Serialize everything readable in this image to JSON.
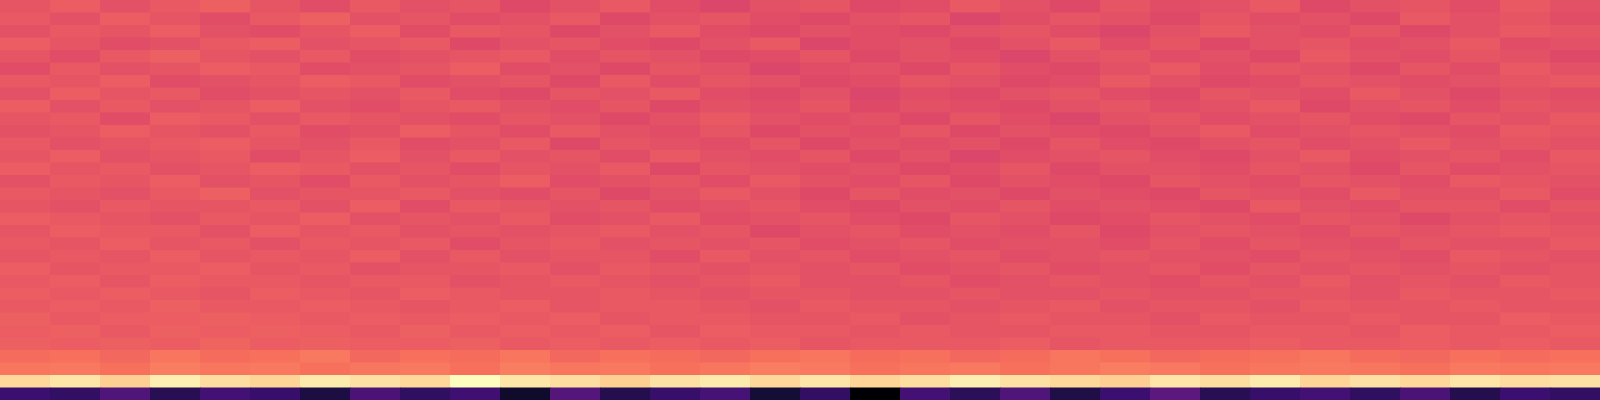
{
  "chart_data": {
    "type": "heatmap",
    "tick_labels": false,
    "cells": [
      [
        63,
        65,
        62,
        64,
        66,
        63,
        61,
        64,
        62,
        63,
        60,
        62,
        64,
        61,
        59,
        62,
        63,
        60,
        61,
        64,
        62,
        60,
        63,
        61,
        62,
        64,
        60,
        62,
        63,
        61,
        64,
        62
      ],
      [
        64,
        62,
        65,
        63,
        61,
        64,
        66,
        62,
        63,
        61,
        62,
        64,
        60,
        62,
        63,
        61,
        60,
        62,
        63,
        59,
        61,
        63,
        62,
        60,
        63,
        61,
        62,
        60,
        64,
        62,
        63,
        61
      ],
      [
        62,
        64,
        63,
        65,
        62,
        61,
        63,
        65,
        61,
        64,
        63,
        60,
        62,
        64,
        61,
        60,
        62,
        61,
        60,
        62,
        63,
        61,
        59,
        62,
        64,
        62,
        61,
        63,
        60,
        62,
        64,
        63
      ],
      [
        65,
        63,
        61,
        62,
        64,
        65,
        62,
        63,
        64,
        60,
        62,
        63,
        61,
        60,
        62,
        64,
        59,
        61,
        62,
        60,
        62,
        64,
        61,
        63,
        60,
        62,
        63,
        61,
        62,
        64,
        61,
        62
      ],
      [
        63,
        61,
        64,
        66,
        63,
        62,
        64,
        61,
        62,
        63,
        64,
        61,
        63,
        62,
        60,
        61,
        63,
        60,
        62,
        61,
        59,
        62,
        63,
        61,
        62,
        60,
        64,
        62,
        61,
        63,
        62,
        60
      ],
      [
        61,
        64,
        62,
        63,
        65,
        64,
        61,
        62,
        63,
        65,
        61,
        62,
        60,
        63,
        62,
        59,
        61,
        62,
        60,
        63,
        61,
        60,
        62,
        64,
        61,
        63,
        62,
        60,
        63,
        61,
        64,
        62
      ],
      [
        64,
        63,
        65,
        61,
        62,
        63,
        65,
        64,
        61,
        62,
        63,
        60,
        64,
        61,
        63,
        62,
        60,
        61,
        63,
        62,
        60,
        61,
        64,
        62,
        60,
        61,
        63,
        62,
        61,
        62,
        63,
        64
      ],
      [
        62,
        65,
        63,
        64,
        61,
        62,
        63,
        62,
        64,
        61,
        60,
        63,
        62,
        64,
        61,
        60,
        62,
        59,
        61,
        60,
        62,
        63,
        61,
        60,
        63,
        62,
        61,
        64,
        62,
        60,
        62,
        61
      ],
      [
        65,
        62,
        64,
        62,
        63,
        65,
        62,
        61,
        63,
        64,
        62,
        61,
        63,
        60,
        62,
        61,
        63,
        60,
        62,
        61,
        60,
        62,
        63,
        61,
        62,
        64,
        60,
        62,
        63,
        61,
        63,
        62
      ],
      [
        63,
        64,
        61,
        65,
        64,
        62,
        64,
        63,
        62,
        61,
        63,
        62,
        60,
        62,
        64,
        62,
        61,
        62,
        60,
        63,
        61,
        59,
        62,
        63,
        61,
        62,
        63,
        61,
        60,
        63,
        62,
        64
      ],
      [
        62,
        63,
        65,
        63,
        62,
        64,
        61,
        62,
        65,
        63,
        61,
        64,
        62,
        61,
        63,
        60,
        62,
        61,
        63,
        60,
        62,
        61,
        60,
        62,
        64,
        61,
        62,
        63,
        62,
        61,
        64,
        63
      ],
      [
        64,
        62,
        63,
        64,
        65,
        63,
        62,
        64,
        61,
        62,
        64,
        60,
        63,
        62,
        61,
        63,
        60,
        62,
        61,
        62,
        60,
        63,
        61,
        60,
        62,
        63,
        61,
        62,
        64,
        62,
        63,
        62
      ],
      [
        63,
        65,
        62,
        63,
        64,
        61,
        63,
        65,
        62,
        64,
        62,
        63,
        61,
        64,
        62,
        61,
        63,
        60,
        62,
        59,
        61,
        62,
        63,
        61,
        60,
        62,
        64,
        61,
        62,
        63,
        61,
        64
      ],
      [
        65,
        63,
        64,
        62,
        63,
        65,
        64,
        62,
        63,
        61,
        63,
        62,
        64,
        60,
        63,
        62,
        61,
        62,
        60,
        61,
        63,
        60,
        62,
        62,
        61,
        63,
        62,
        60,
        63,
        61,
        62,
        63
      ],
      [
        62,
        64,
        63,
        65,
        62,
        63,
        61,
        64,
        62,
        63,
        65,
        61,
        62,
        63,
        61,
        64,
        62,
        61,
        63,
        60,
        62,
        61,
        60,
        63,
        62,
        61,
        63,
        62,
        61,
        64,
        63,
        62
      ],
      [
        64,
        63,
        62,
        64,
        66,
        62,
        63,
        63,
        64,
        62,
        61,
        63,
        60,
        62,
        64,
        62,
        60,
        63,
        61,
        62,
        60,
        62,
        61,
        60,
        63,
        62,
        61,
        64,
        62,
        62,
        64,
        61
      ],
      [
        63,
        62,
        64,
        63,
        63,
        64,
        62,
        65,
        61,
        64,
        63,
        62,
        63,
        61,
        62,
        63,
        61,
        60,
        62,
        61,
        63,
        61,
        62,
        61,
        60,
        64,
        62,
        61,
        63,
        63,
        61,
        63
      ],
      [
        65,
        64,
        63,
        62,
        64,
        63,
        65,
        62,
        63,
        62,
        64,
        61,
        62,
        64,
        61,
        62,
        63,
        61,
        60,
        63,
        62,
        60,
        61,
        63,
        62,
        61,
        63,
        62,
        60,
        62,
        63,
        62
      ],
      [
        63,
        65,
        64,
        64,
        62,
        65,
        63,
        64,
        62,
        63,
        62,
        63,
        64,
        62,
        63,
        60,
        62,
        63,
        61,
        62,
        61,
        63,
        60,
        62,
        63,
        62,
        61,
        63,
        62,
        63,
        64,
        63
      ],
      [
        64,
        63,
        65,
        63,
        64,
        62,
        64,
        63,
        64,
        61,
        63,
        64,
        62,
        63,
        62,
        63,
        61,
        62,
        63,
        61,
        62,
        62,
        61,
        63,
        61,
        63,
        62,
        61,
        63,
        62,
        62,
        64
      ],
      [
        63,
        64,
        63,
        65,
        63,
        64,
        63,
        65,
        62,
        64,
        62,
        63,
        63,
        61,
        64,
        62,
        63,
        61,
        62,
        63,
        61,
        62,
        63,
        62,
        62,
        61,
        63,
        62,
        61,
        64,
        63,
        62
      ],
      [
        65,
        63,
        64,
        64,
        65,
        63,
        64,
        62,
        63,
        63,
        64,
        62,
        64,
        63,
        62,
        63,
        62,
        63,
        61,
        62,
        63,
        61,
        62,
        63,
        61,
        63,
        62,
        63,
        62,
        63,
        62,
        63
      ],
      [
        64,
        65,
        63,
        65,
        64,
        64,
        63,
        64,
        64,
        62,
        63,
        64,
        63,
        62,
        63,
        64,
        62,
        62,
        63,
        61,
        62,
        63,
        62,
        61,
        63,
        62,
        64,
        62,
        63,
        62,
        64,
        63
      ],
      [
        65,
        64,
        65,
        64,
        63,
        65,
        64,
        63,
        65,
        64,
        63,
        63,
        64,
        63,
        62,
        63,
        63,
        62,
        62,
        63,
        62,
        62,
        63,
        62,
        62,
        63,
        63,
        62,
        64,
        63,
        63,
        64
      ],
      [
        64,
        65,
        64,
        66,
        64,
        64,
        65,
        64,
        63,
        64,
        65,
        63,
        64,
        64,
        63,
        62,
        64,
        63,
        63,
        62,
        63,
        64,
        62,
        63,
        63,
        62,
        64,
        63,
        63,
        64,
        63,
        63
      ],
      [
        66,
        64,
        65,
        65,
        66,
        65,
        64,
        65,
        64,
        65,
        64,
        65,
        63,
        64,
        64,
        63,
        63,
        64,
        62,
        63,
        64,
        63,
        63,
        62,
        64,
        63,
        63,
        64,
        63,
        63,
        65,
        64
      ],
      [
        65,
        66,
        64,
        66,
        65,
        66,
        65,
        64,
        66,
        64,
        65,
        64,
        65,
        63,
        65,
        64,
        64,
        63,
        64,
        63,
        63,
        64,
        64,
        63,
        63,
        64,
        64,
        63,
        65,
        64,
        64,
        65
      ],
      [
        66,
        65,
        66,
        65,
        67,
        65,
        66,
        65,
        65,
        66,
        64,
        65,
        64,
        65,
        64,
        65,
        63,
        64,
        64,
        64,
        65,
        63,
        64,
        64,
        64,
        65,
        64,
        64,
        65,
        64,
        65,
        64
      ],
      [
        69,
        70,
        68,
        71,
        69,
        70,
        72,
        68,
        70,
        69,
        71,
        68,
        70,
        69,
        68,
        70,
        71,
        69,
        70,
        68,
        69,
        71,
        70,
        68,
        69,
        70,
        71,
        69,
        68,
        70,
        69,
        70
      ],
      [
        71,
        72,
        70,
        73,
        71,
        72,
        70,
        71,
        72,
        70,
        73,
        71,
        72,
        70,
        71,
        73,
        72,
        70,
        71,
        72,
        70,
        71,
        73,
        72,
        70,
        71,
        72,
        71,
        70,
        72,
        71,
        72
      ],
      [
        92,
        95,
        90,
        97,
        93,
        91,
        96,
        94,
        92,
        100,
        95,
        93,
        90,
        94,
        96,
        92,
        95,
        91,
        93,
        97,
        94,
        92,
        90,
        95,
        93,
        96,
        91,
        94,
        92,
        95,
        93,
        94
      ],
      [
        20,
        18,
        25,
        15,
        22,
        19,
        12,
        24,
        17,
        21,
        8,
        26,
        14,
        19,
        23,
        10,
        18,
        0,
        22,
        16,
        25,
        13,
        20,
        28,
        15,
        19,
        22,
        17,
        24,
        14,
        20,
        18
      ]
    ]
  }
}
